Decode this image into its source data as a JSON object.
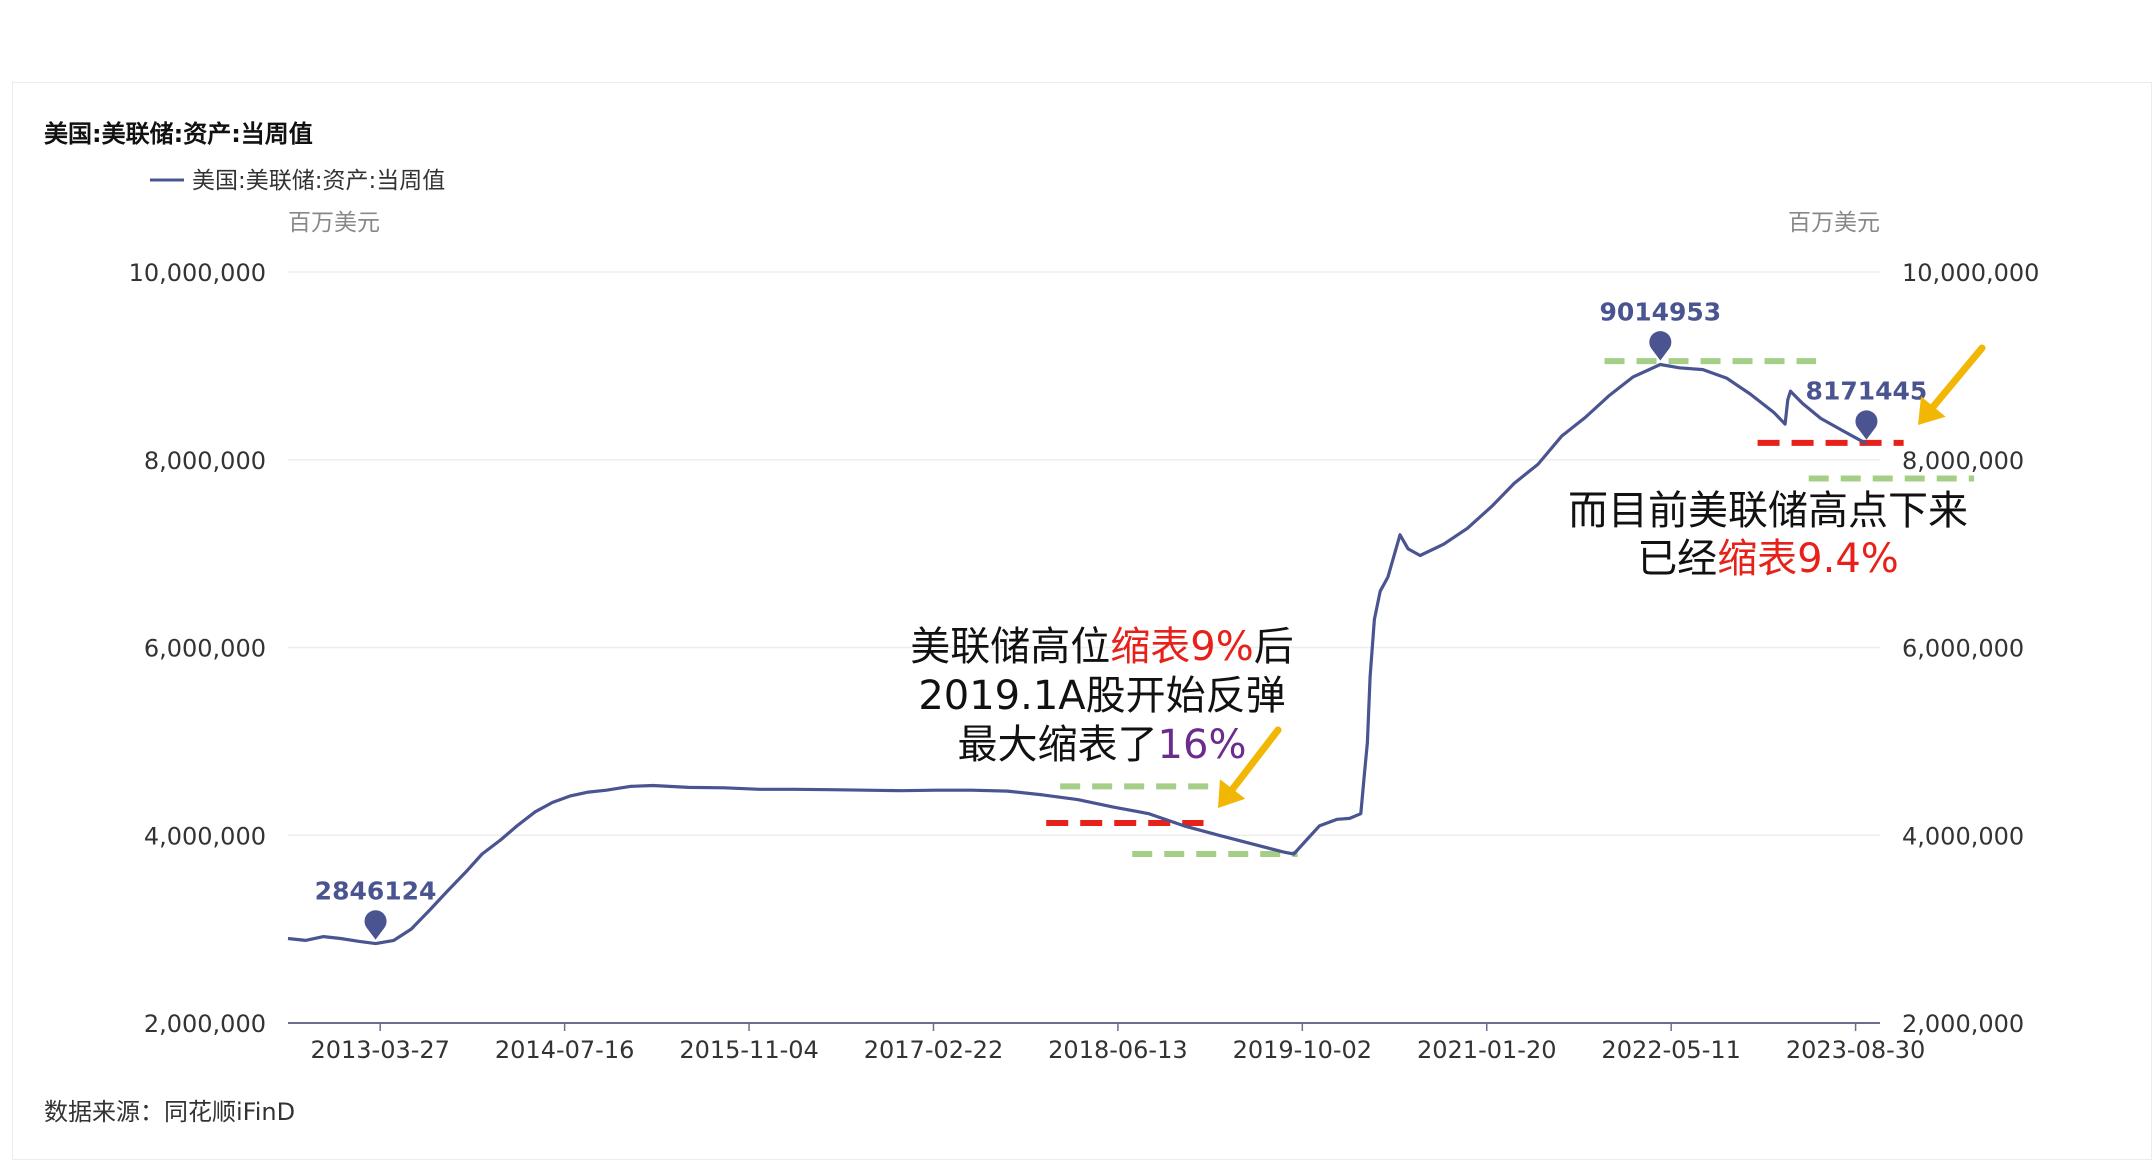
{
  "chart_data": {
    "type": "line",
    "title": "美国:美联储:资产:当周值",
    "legend": "美国:美联储:资产:当周值",
    "legend_position": "top-left",
    "unit_left": "百万美元",
    "unit_right": "百万美元",
    "source": "数据来源：同花顺iFinD",
    "y_ticks": [
      "10,000,000",
      "8,000,000",
      "6,000,000",
      "4,000,000",
      "2,000,000"
    ],
    "y_tick_values": [
      10000000,
      8000000,
      6000000,
      4000000,
      2000000
    ],
    "ylim": [
      2000000,
      10000000
    ],
    "x_ticks": [
      "2013-03-27",
      "2014-07-16",
      "2015-11-04",
      "2017-02-22",
      "2018-06-13",
      "2019-10-02",
      "2021-01-20",
      "2022-05-11",
      "2023-08-30"
    ],
    "xlim": [
      "2012-08-01",
      "2023-11-01"
    ],
    "grid": true,
    "series": [
      {
        "name": "美国:美联储:资产:当周值",
        "color": "#4a5490",
        "x": [
          "2012-08-01",
          "2012-09-15",
          "2012-11-01",
          "2012-12-15",
          "2013-01-30",
          "2013-03-15",
          "2013-05-01",
          "2013-06-15",
          "2013-08-01",
          "2013-09-15",
          "2013-11-01",
          "2013-12-15",
          "2014-02-01",
          "2014-03-15",
          "2014-05-01",
          "2014-06-15",
          "2014-08-01",
          "2014-09-15",
          "2014-11-01",
          "2015-01-01",
          "2015-03-01",
          "2015-06-01",
          "2015-09-01",
          "2015-12-01",
          "2016-03-01",
          "2016-06-01",
          "2016-09-01",
          "2016-12-01",
          "2017-03-01",
          "2017-06-01",
          "2017-09-01",
          "2017-12-01",
          "2018-03-01",
          "2018-06-01",
          "2018-09-01",
          "2018-12-01",
          "2019-03-01",
          "2019-06-01",
          "2019-08-15",
          "2019-09-10",
          "2019-10-15",
          "2019-11-15",
          "2019-12-31",
          "2020-02-01",
          "2020-03-01",
          "2020-03-10",
          "2020-03-18",
          "2020-03-25",
          "2020-04-05",
          "2020-04-20",
          "2020-05-10",
          "2020-06-10",
          "2020-07-01",
          "2020-08-01",
          "2020-10-01",
          "2020-12-01",
          "2021-02-01",
          "2021-04-01",
          "2021-06-01",
          "2021-08-01",
          "2021-10-01",
          "2021-12-01",
          "2022-02-01",
          "2022-04-13",
          "2022-06-01",
          "2022-08-01",
          "2022-10-01",
          "2022-12-01",
          "2023-02-01",
          "2023-03-01",
          "2023-03-08",
          "2023-03-15",
          "2023-04-15",
          "2023-06-01",
          "2023-08-01",
          "2023-09-27"
        ],
        "values": [
          2900000,
          2880000,
          2920000,
          2900000,
          2870000,
          2846124,
          2880000,
          3000000,
          3200000,
          3400000,
          3600000,
          3800000,
          3950000,
          4100000,
          4250000,
          4350000,
          4420000,
          4460000,
          4480000,
          4520000,
          4530000,
          4510000,
          4505000,
          4490000,
          4490000,
          4485000,
          4480000,
          4475000,
          4480000,
          4480000,
          4470000,
          4430000,
          4380000,
          4300000,
          4230000,
          4100000,
          4000000,
          3900000,
          3820000,
          3800000,
          3960000,
          4100000,
          4170000,
          4180000,
          4230000,
          4640000,
          4990000,
          5690000,
          6300000,
          6600000,
          6750000,
          7200000,
          7050000,
          6980000,
          7100000,
          7270000,
          7500000,
          7750000,
          7950000,
          8250000,
          8450000,
          8680000,
          8880000,
          9014953,
          8980000,
          8960000,
          8870000,
          8700000,
          8500000,
          8380000,
          8640000,
          8730000,
          8600000,
          8440000,
          8300000,
          8171445
        ]
      }
    ],
    "markers": [
      {
        "label": "2846124",
        "x": "2013-03-15",
        "value": 2846124
      },
      {
        "label": "9014953",
        "x": "2022-04-13",
        "value": 9014953
      },
      {
        "label": "8171445",
        "x": "2023-09-27",
        "value": 8171445
      }
    ],
    "annotations": {
      "left_block": [
        {
          "parts": [
            {
              "text": "美联储高位",
              "color": "#111111"
            },
            {
              "text": "缩表9%",
              "color": "#e8201a"
            },
            {
              "text": "后",
              "color": "#111111"
            }
          ]
        },
        {
          "parts": [
            {
              "text": "2019.1A股开始反弹",
              "color": "#111111"
            }
          ]
        },
        {
          "parts": [
            {
              "text": "最大缩表了",
              "color": "#111111"
            },
            {
              "text": "16%",
              "color": "#6a2d8c"
            }
          ]
        }
      ],
      "right_block": [
        {
          "parts": [
            {
              "text": "而目前美联储高点下来",
              "color": "#111111"
            }
          ]
        },
        {
          "parts": [
            {
              "text": "已经",
              "color": "#111111"
            },
            {
              "text": "缩表9.4%",
              "color": "#e8201a"
            }
          ]
        }
      ]
    },
    "colors": {
      "line": "#4a5490",
      "green_dashes": "#a5cf86",
      "red_dashes": "#e8201a",
      "arrows": "#f2b705"
    }
  }
}
